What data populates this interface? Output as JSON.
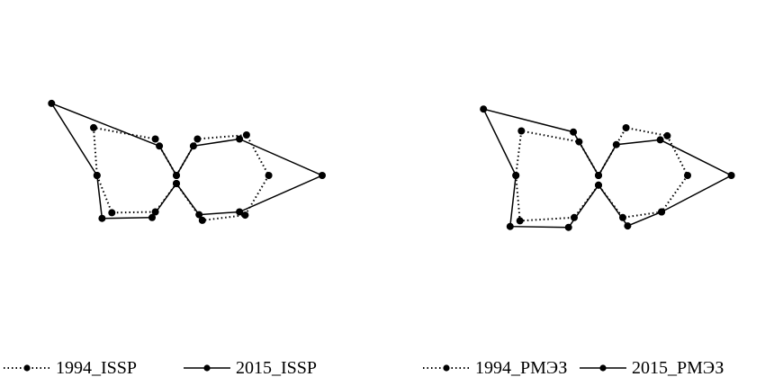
{
  "chart_data": [
    {
      "type": "radar",
      "series": [
        {
          "name": "1994_ISSP",
          "style": "dotted",
          "points": [
            [
              0,
              1
            ],
            [
              0.26,
              0.62
            ],
            [
              0.5,
              0.59
            ],
            [
              0.57,
              0.64
            ],
            [
              0.49,
              0.39
            ],
            [
              0.32,
              0.11
            ],
            [
              0.05,
              0.0
            ],
            [
              0.26,
              0.07
            ],
            [
              0.46,
              0.09
            ],
            [
              0.49,
              0.32
            ],
            [
              0.59,
              0.63
            ],
            [
              0.26,
              0.6
            ]
          ]
        },
        {
          "name": "2015_ISSP",
          "style": "solid",
          "points": [
            [
              0,
              1
            ],
            [
              0.21,
              0.62
            ],
            [
              0.45,
              0.59
            ],
            [
              0.9,
              0.63
            ],
            [
              0.45,
              0.39
            ],
            [
              0.28,
              0.11
            ],
            [
              0.05,
              0.0
            ],
            [
              0.3,
              0.07
            ],
            [
              0.53,
              0.09
            ],
            [
              0.49,
              0.32
            ],
            [
              0.89,
              0.63
            ],
            [
              0.21,
              0.6
            ]
          ]
        }
      ]
    },
    {
      "type": "radar",
      "series": [
        {
          "name": "1994_РМЭЗ",
          "style": "dotted",
          "points": [
            [
              0,
              1
            ],
            [
              0.34,
              0.67
            ],
            [
              0.49,
              0.59
            ],
            [
              0.55,
              0.64
            ],
            [
              0.45,
              0.39
            ],
            [
              0.3,
              0.11
            ],
            [
              0.06,
              0.0
            ],
            [
              0.3,
              0.09
            ],
            [
              0.56,
              0.09
            ],
            [
              0.51,
              0.32
            ],
            [
              0.55,
              0.6
            ],
            [
              0.24,
              0.67
            ]
          ]
        },
        {
          "name": "2015_РМЭЗ",
          "style": "solid",
          "points": [
            [
              0,
              1
            ],
            [
              0.22,
              0.67
            ],
            [
              0.44,
              0.59
            ],
            [
              0.82,
              0.64
            ],
            [
              0.45,
              0.39
            ],
            [
              0.36,
              0.11
            ],
            [
              0.06,
              0.0
            ],
            [
              0.37,
              0.09
            ],
            [
              0.63,
              0.09
            ],
            [
              0.51,
              0.32
            ],
            [
              0.82,
              0.6
            ],
            [
              0.31,
              0.67
            ]
          ]
        }
      ]
    }
  ],
  "legends": [
    {
      "items": [
        "1994_ISSP",
        "2015_ISSP"
      ]
    },
    {
      "items": [
        "1994_РМЭЗ",
        "2015_РМЭЗ"
      ]
    }
  ]
}
